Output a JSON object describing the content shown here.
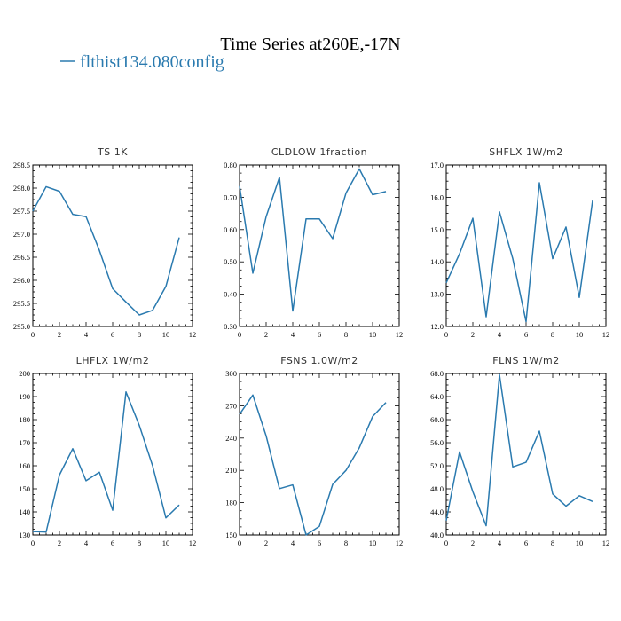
{
  "figure": {
    "title": "Time Series at260E,-17N",
    "legend": {
      "label": "flthist134.080config",
      "color": "#2a7aaf"
    }
  },
  "chart_data": [
    {
      "type": "line",
      "title": "TS   1K",
      "xlim": [
        0,
        12
      ],
      "ylim": [
        295.0,
        298.5
      ],
      "xticks": [
        0,
        2,
        4,
        6,
        8,
        10,
        12
      ],
      "yticks": [
        295.0,
        295.5,
        296.0,
        296.5,
        297.0,
        297.5,
        298.0,
        298.5
      ],
      "ytick_labels": [
        "295.0",
        "295.5",
        "296.0",
        "296.5",
        "297.0",
        "297.5",
        "298.0",
        "298.5"
      ],
      "series": [
        {
          "x": [
            0,
            1,
            2,
            3,
            4,
            5,
            6,
            7,
            8,
            9,
            10,
            11
          ],
          "values": [
            297.5,
            298.03,
            297.93,
            297.43,
            297.38,
            296.65,
            295.82,
            295.53,
            295.25,
            295.35,
            295.87,
            296.93
          ]
        }
      ]
    },
    {
      "type": "line",
      "title": "CLDLOW   1fraction",
      "xlim": [
        0,
        12
      ],
      "ylim": [
        0.3,
        0.8
      ],
      "xticks": [
        0,
        2,
        4,
        6,
        8,
        10,
        12
      ],
      "yticks": [
        0.3,
        0.4,
        0.5,
        0.6,
        0.7,
        0.8
      ],
      "ytick_labels": [
        "0.30",
        "0.40",
        "0.50",
        "0.60",
        "0.70",
        "0.80"
      ],
      "series": [
        {
          "x": [
            0,
            1,
            2,
            3,
            4,
            5,
            6,
            7,
            8,
            9,
            10,
            11
          ],
          "values": [
            0.735,
            0.465,
            0.64,
            0.762,
            0.348,
            0.633,
            0.633,
            0.572,
            0.713,
            0.788,
            0.708,
            0.718
          ]
        }
      ]
    },
    {
      "type": "line",
      "title": "SHFLX   1W/m2",
      "xlim": [
        0,
        12
      ],
      "ylim": [
        12.0,
        17.0
      ],
      "xticks": [
        0,
        2,
        4,
        6,
        8,
        10,
        12
      ],
      "yticks": [
        12.0,
        13.0,
        14.0,
        15.0,
        16.0,
        17.0
      ],
      "ytick_labels": [
        "12.0",
        "13.0",
        "14.0",
        "15.0",
        "16.0",
        "17.0"
      ],
      "series": [
        {
          "x": [
            0,
            1,
            2,
            3,
            4,
            5,
            6,
            7,
            8,
            9,
            10,
            11
          ],
          "values": [
            13.35,
            14.25,
            15.35,
            12.3,
            15.55,
            14.1,
            12.15,
            16.45,
            14.1,
            15.08,
            12.9,
            15.9
          ]
        }
      ]
    },
    {
      "type": "line",
      "title": "LHFLX   1W/m2",
      "xlim": [
        0,
        12
      ],
      "ylim": [
        130,
        200
      ],
      "xticks": [
        0,
        2,
        4,
        6,
        8,
        10,
        12
      ],
      "yticks": [
        130,
        140,
        150,
        160,
        170,
        180,
        190,
        200
      ],
      "ytick_labels": [
        "130",
        "140",
        "150",
        "160",
        "170",
        "180",
        "190",
        "200"
      ],
      "series": [
        {
          "x": [
            0,
            1,
            2,
            3,
            4,
            5,
            6,
            7,
            8,
            9,
            10,
            11
          ],
          "values": [
            131.5,
            131.3,
            156,
            167.4,
            153.5,
            157.2,
            140.7,
            192,
            177.5,
            160,
            137.4,
            143
          ]
        }
      ]
    },
    {
      "type": "line",
      "title": "FSNS   1.0W/m2",
      "xlim": [
        0,
        12
      ],
      "ylim": [
        150,
        300
      ],
      "xticks": [
        0,
        2,
        4,
        6,
        8,
        10,
        12
      ],
      "yticks": [
        150,
        180,
        210,
        240,
        270,
        300
      ],
      "ytick_labels": [
        "150",
        "180",
        "210",
        "240",
        "270",
        "300"
      ],
      "series": [
        {
          "x": [
            0,
            1,
            2,
            3,
            4,
            5,
            6,
            7,
            8,
            9,
            10,
            11
          ],
          "values": [
            262,
            280,
            242,
            193,
            196.5,
            150,
            158,
            197,
            210,
            231,
            260,
            273
          ]
        }
      ]
    },
    {
      "type": "line",
      "title": "FLNS   1W/m2",
      "xlim": [
        0,
        12
      ],
      "ylim": [
        40,
        68
      ],
      "xticks": [
        0,
        2,
        4,
        6,
        8,
        10,
        12
      ],
      "yticks": [
        40,
        44,
        48,
        52,
        56,
        60,
        64,
        68
      ],
      "ytick_labels": [
        "40.0",
        "44.0",
        "48.0",
        "52.0",
        "56.0",
        "60.0",
        "64.0",
        "68.0"
      ],
      "series": [
        {
          "x": [
            0,
            1,
            2,
            3,
            4,
            5,
            6,
            7,
            8,
            9,
            10,
            11
          ],
          "values": [
            42.5,
            54.4,
            47.5,
            41.6,
            67.8,
            51.8,
            52.6,
            58,
            47.1,
            45,
            46.8,
            45.8
          ]
        }
      ]
    }
  ]
}
